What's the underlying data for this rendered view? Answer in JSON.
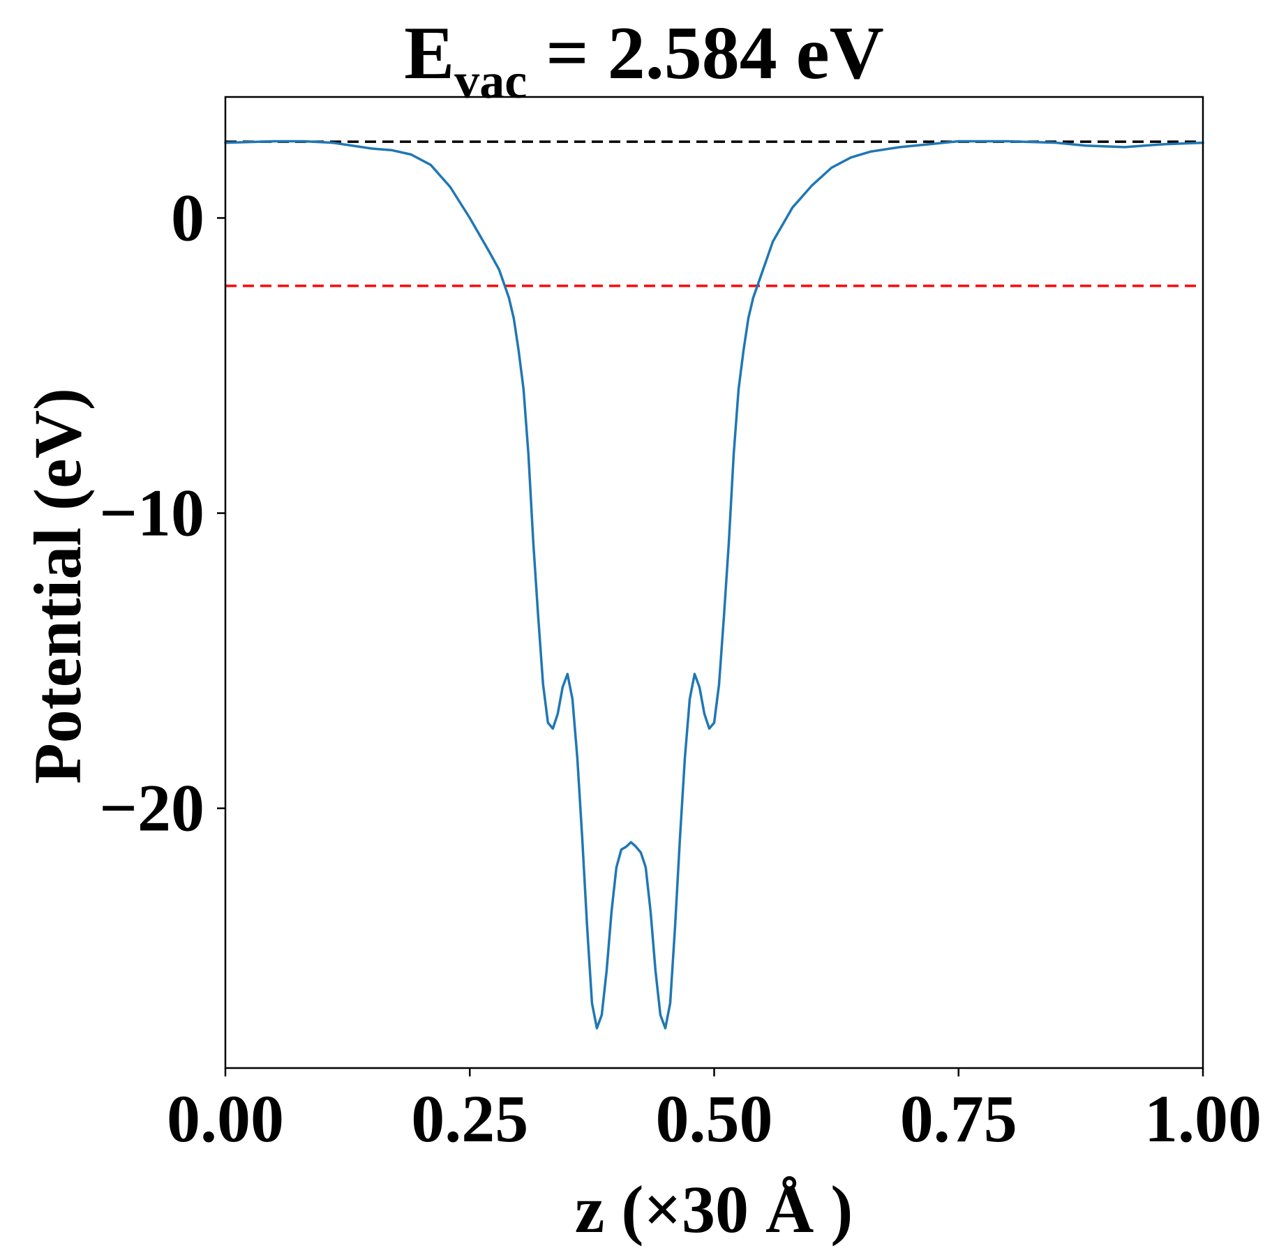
{
  "chart_data": {
    "type": "line",
    "title": {
      "main": "E",
      "subscript": "vac",
      "rest": " = 2.584 eV"
    },
    "xlabel": "z (×30 Å )",
    "ylabel": "Potential (eV)",
    "xlim": [
      0.0,
      1.0
    ],
    "ylim": [
      -28.8,
      4.1
    ],
    "grid": false,
    "x_ticks": [
      {
        "value": 0.0,
        "label": "0.00"
      },
      {
        "value": 0.25,
        "label": "0.25"
      },
      {
        "value": 0.5,
        "label": "0.50"
      },
      {
        "value": 0.75,
        "label": "0.75"
      },
      {
        "value": 1.0,
        "label": "1.00"
      }
    ],
    "y_ticks": [
      {
        "value": 0,
        "label": "0"
      },
      {
        "value": -10,
        "label": "−10"
      },
      {
        "value": -20,
        "label": "−20"
      }
    ],
    "reference_lines": [
      {
        "y": 2.584,
        "color": "#000000",
        "style": "dashed"
      },
      {
        "y": -2.3,
        "color": "#ff0000",
        "style": "dashed"
      }
    ],
    "series": [
      {
        "color": "#1f77b4",
        "points": [
          [
            0.0,
            2.55
          ],
          [
            0.05,
            2.6
          ],
          [
            0.08,
            2.6
          ],
          [
            0.11,
            2.55
          ],
          [
            0.13,
            2.45
          ],
          [
            0.15,
            2.35
          ],
          [
            0.17,
            2.3
          ],
          [
            0.19,
            2.15
          ],
          [
            0.21,
            1.8
          ],
          [
            0.23,
            1.05
          ],
          [
            0.25,
            0.0
          ],
          [
            0.27,
            -1.15
          ],
          [
            0.28,
            -1.75
          ],
          [
            0.29,
            -2.7
          ],
          [
            0.295,
            -3.4
          ],
          [
            0.3,
            -4.5
          ],
          [
            0.305,
            -5.8
          ],
          [
            0.31,
            -8.0
          ],
          [
            0.315,
            -11.0
          ],
          [
            0.32,
            -13.5
          ],
          [
            0.325,
            -15.8
          ],
          [
            0.33,
            -17.1
          ],
          [
            0.335,
            -17.3
          ],
          [
            0.34,
            -16.8
          ],
          [
            0.345,
            -15.9
          ],
          [
            0.35,
            -15.45
          ],
          [
            0.355,
            -16.3
          ],
          [
            0.36,
            -18.3
          ],
          [
            0.365,
            -21.0
          ],
          [
            0.37,
            -24.0
          ],
          [
            0.375,
            -26.6
          ],
          [
            0.38,
            -27.45
          ],
          [
            0.385,
            -27.0
          ],
          [
            0.39,
            -25.5
          ],
          [
            0.395,
            -23.5
          ],
          [
            0.4,
            -22.0
          ],
          [
            0.405,
            -21.4
          ],
          [
            0.41,
            -21.3
          ],
          [
            0.415,
            -21.15
          ],
          [
            0.42,
            -21.3
          ],
          [
            0.425,
            -21.5
          ],
          [
            0.43,
            -22.0
          ],
          [
            0.435,
            -23.5
          ],
          [
            0.44,
            -25.5
          ],
          [
            0.445,
            -27.0
          ],
          [
            0.45,
            -27.45
          ],
          [
            0.455,
            -26.6
          ],
          [
            0.46,
            -24.0
          ],
          [
            0.465,
            -21.0
          ],
          [
            0.47,
            -18.3
          ],
          [
            0.475,
            -16.3
          ],
          [
            0.48,
            -15.45
          ],
          [
            0.485,
            -15.9
          ],
          [
            0.49,
            -16.8
          ],
          [
            0.495,
            -17.3
          ],
          [
            0.5,
            -17.1
          ],
          [
            0.505,
            -15.8
          ],
          [
            0.51,
            -13.5
          ],
          [
            0.515,
            -11.0
          ],
          [
            0.52,
            -8.0
          ],
          [
            0.525,
            -5.8
          ],
          [
            0.53,
            -4.5
          ],
          [
            0.535,
            -3.4
          ],
          [
            0.54,
            -2.7
          ],
          [
            0.55,
            -1.75
          ],
          [
            0.56,
            -0.8
          ],
          [
            0.58,
            0.35
          ],
          [
            0.6,
            1.1
          ],
          [
            0.62,
            1.7
          ],
          [
            0.64,
            2.05
          ],
          [
            0.66,
            2.25
          ],
          [
            0.69,
            2.4
          ],
          [
            0.72,
            2.5
          ],
          [
            0.75,
            2.6
          ],
          [
            0.8,
            2.6
          ],
          [
            0.85,
            2.55
          ],
          [
            0.88,
            2.45
          ],
          [
            0.92,
            2.4
          ],
          [
            0.96,
            2.5
          ],
          [
            1.0,
            2.55
          ]
        ]
      }
    ]
  }
}
